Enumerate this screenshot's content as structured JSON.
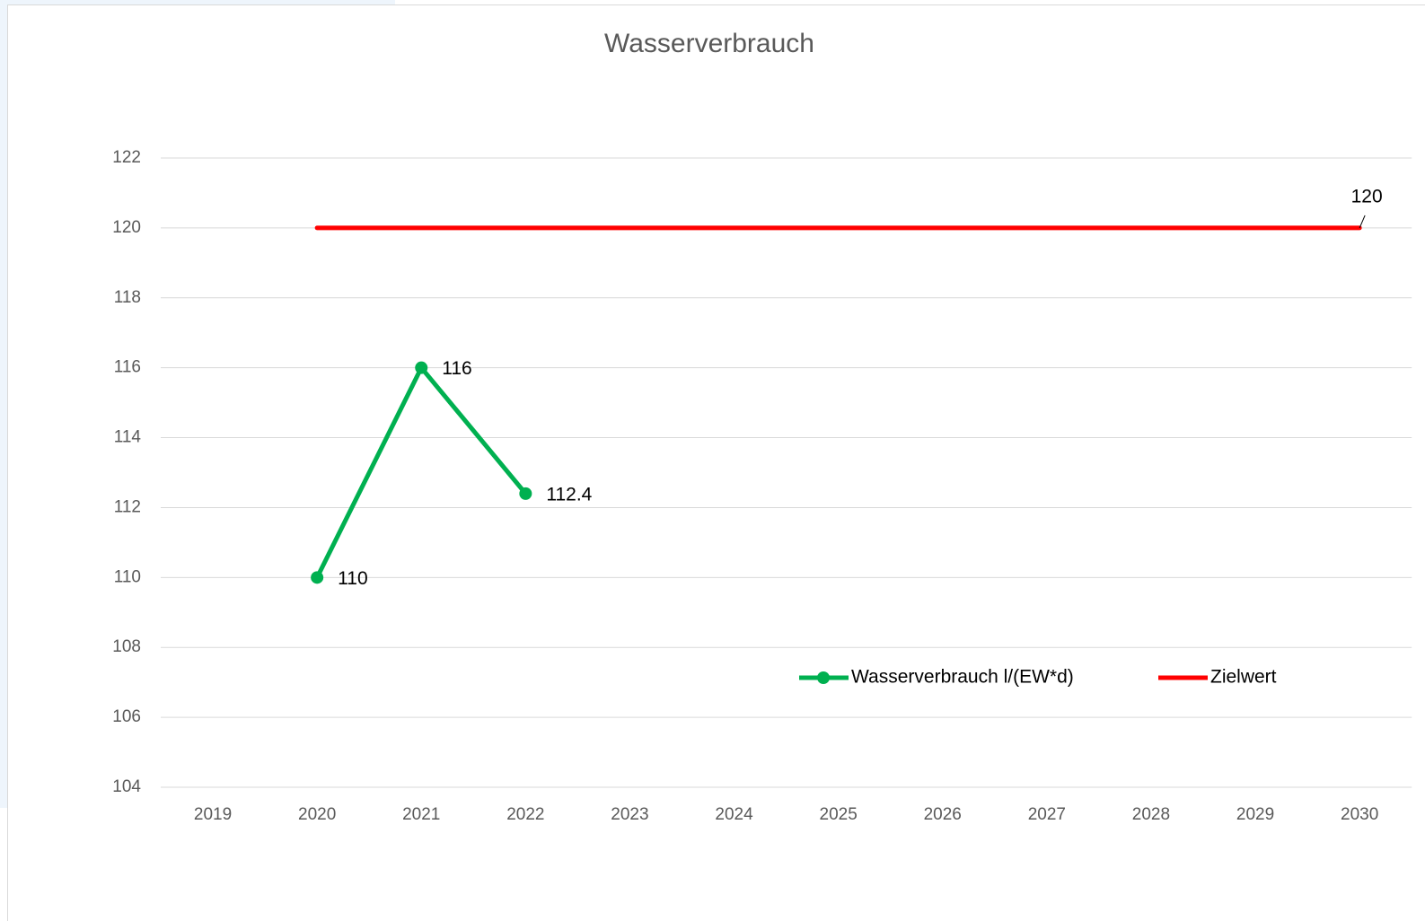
{
  "chart_data": {
    "type": "line",
    "title": "Wasserverbrauch",
    "categories": [
      "2019",
      "2020",
      "2021",
      "2022",
      "2023",
      "2024",
      "2025",
      "2026",
      "2027",
      "2028",
      "2029",
      "2030"
    ],
    "series": [
      {
        "name": "Wasserverbrauch l/(EW*d)",
        "color": "#00b050",
        "marker": true,
        "data_labels": "all",
        "values": [
          null,
          110,
          116,
          112.4,
          null,
          null,
          null,
          null,
          null,
          null,
          null,
          null
        ]
      },
      {
        "name": "Zielwert",
        "color": "#ff0000",
        "marker": false,
        "data_labels": "last",
        "values": [
          null,
          120,
          120,
          120,
          120,
          120,
          120,
          120,
          120,
          120,
          120,
          120
        ]
      }
    ],
    "ylim": [
      104,
      122
    ],
    "yticks": [
      104,
      106,
      108,
      110,
      112,
      114,
      116,
      118,
      120,
      122
    ],
    "grid": true,
    "legend": "inside-bottom-right"
  }
}
